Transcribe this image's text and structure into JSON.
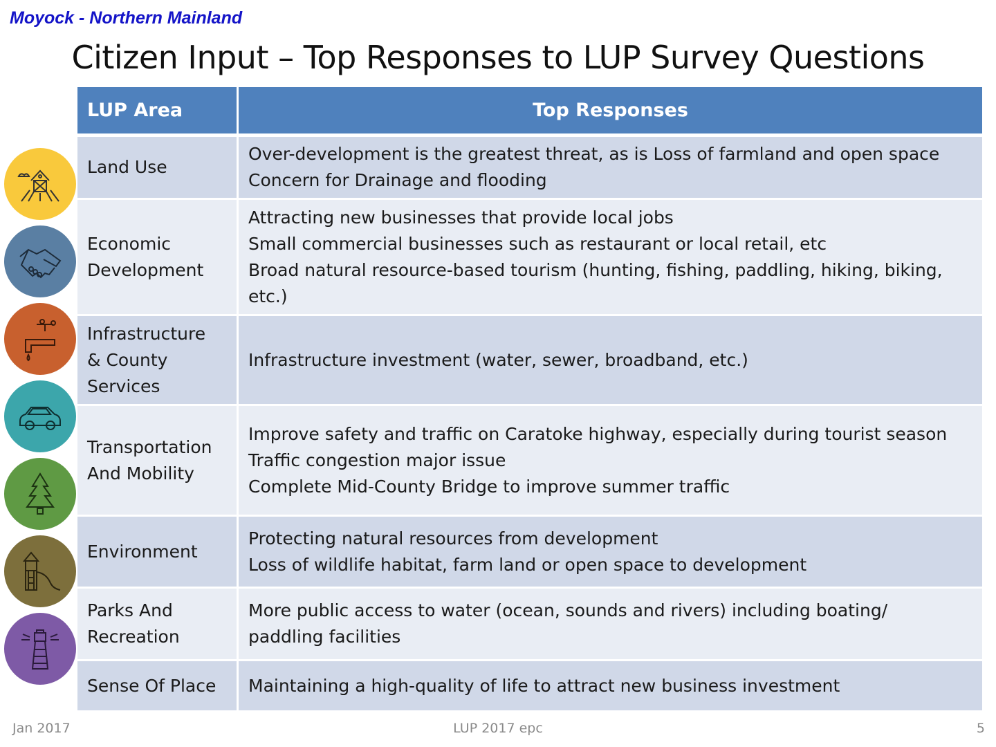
{
  "header": {
    "region": "Moyock - Northern Mainland",
    "title": "Citizen Input – Top Responses to LUP  Survey Questions"
  },
  "table": {
    "headers": {
      "area": "LUP Area",
      "responses": "Top Responses"
    },
    "rows": [
      {
        "area": [
          "Land Use"
        ],
        "responses": [
          "Over-development is the greatest threat, as is Loss of farmland and open space",
          "Concern for Drainage and flooding"
        ]
      },
      {
        "area": [
          "Economic",
          "Development"
        ],
        "responses": [
          "Attracting new businesses that provide local jobs",
          "Small commercial businesses such as restaurant or local retail, etc",
          "Broad natural resource-based tourism (hunting, fishing, paddling, hiking, biking,",
          "etc.)"
        ]
      },
      {
        "area": [
          "Infrastructure",
          "& County",
          "Services"
        ],
        "responses": [
          "Infrastructure investment (water, sewer, broadband, etc.)"
        ]
      },
      {
        "area": [
          "Transportation",
          "And Mobility"
        ],
        "responses": [
          "Improve safety and traffic on Caratoke highway, especially during tourist season",
          "Traffic congestion major issue",
          "Complete Mid-County Bridge to improve summer traffic"
        ]
      },
      {
        "area": [
          "Environment"
        ],
        "responses": [
          "Protecting natural resources from development",
          "Loss of wildlife habitat, farm land or open space to development"
        ]
      },
      {
        "area": [
          "Parks And",
          "Recreation"
        ],
        "responses": [
          "More public access to water (ocean, sounds and rivers) including boating/",
          "paddling facilities"
        ]
      },
      {
        "area": [
          "Sense Of Place"
        ],
        "responses": [
          "Maintaining a high-quality of life to attract new business investment"
        ]
      }
    ]
  },
  "icons": [
    {
      "name": "farm-icon",
      "color": "#f9c93c"
    },
    {
      "name": "handshake-icon",
      "color": "#5a7fa3"
    },
    {
      "name": "faucet-icon",
      "color": "#c8602e"
    },
    {
      "name": "car-icon",
      "color": "#3ca6ab"
    },
    {
      "name": "tree-icon",
      "color": "#5f9a44"
    },
    {
      "name": "playground-icon",
      "color": "#7d6f3c"
    },
    {
      "name": "lighthouse-icon",
      "color": "#7e5aa6"
    }
  ],
  "footer": {
    "date": "Jan 2017",
    "center": "LUP 2017 epc",
    "page": "5"
  }
}
